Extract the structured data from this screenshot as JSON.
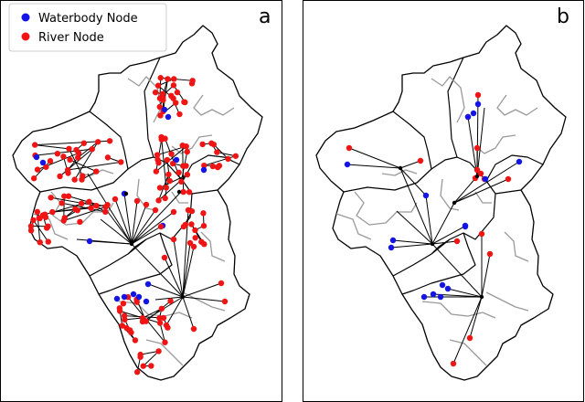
{
  "legend": {
    "waterbody_label": "Waterbody Node",
    "river_label": "River Node"
  },
  "colors": {
    "waterbody": "#1414e6",
    "river": "#f01414",
    "boundary": "#000000",
    "subbasin": "#9a9a9a"
  },
  "panels": [
    {
      "id": "a",
      "letter": "a"
    },
    {
      "id": "b",
      "letter": "b"
    }
  ]
}
